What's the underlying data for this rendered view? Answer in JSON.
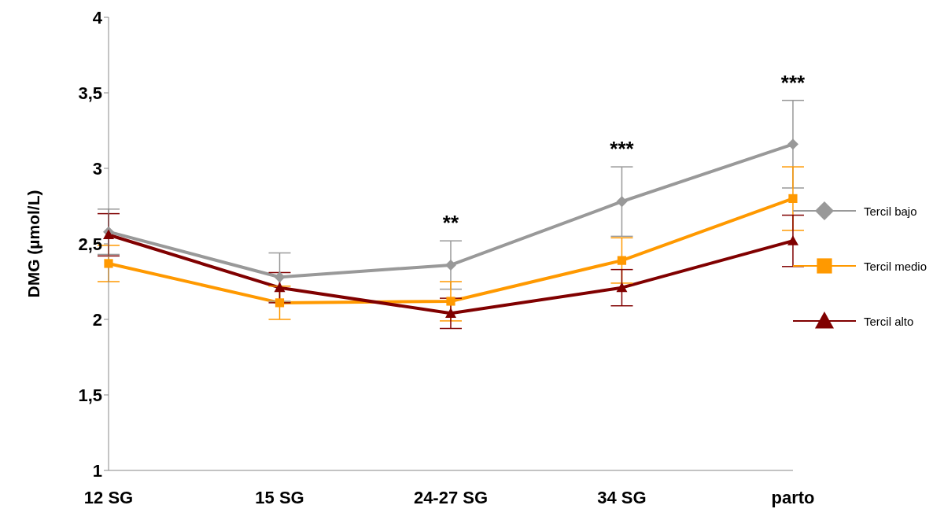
{
  "chart_data": {
    "type": "line",
    "ylabel": "DMG (µmol/L)",
    "categories": [
      "12 SG",
      "15 SG",
      "24-27 SG",
      "34 SG",
      "parto"
    ],
    "ylim": [
      1,
      4
    ],
    "yticks": [
      1,
      {
        "value": 1.5,
        "label": "1,5"
      },
      2,
      {
        "value": 2.5,
        "label": "2,5"
      },
      3,
      {
        "value": 3.5,
        "label": "3,5"
      },
      4
    ],
    "grid": false,
    "legend": "right",
    "series": [
      {
        "name": "Tercil bajo",
        "color": "#999999",
        "marker": "diamond",
        "values": [
          2.58,
          2.28,
          2.36,
          2.78,
          3.16
        ],
        "errors": [
          0.15,
          0.16,
          0.16,
          0.23,
          0.29
        ]
      },
      {
        "name": "Tercil medio",
        "color": "#ff9900",
        "marker": "square",
        "values": [
          2.37,
          2.11,
          2.12,
          2.39,
          2.8
        ],
        "errors": [
          0.12,
          0.11,
          0.13,
          0.15,
          0.21
        ]
      },
      {
        "name": "Tercil alto",
        "color": "#800000",
        "marker": "triangle",
        "values": [
          2.56,
          2.21,
          2.04,
          2.21,
          2.52
        ],
        "errors": [
          0.14,
          0.1,
          0.1,
          0.12,
          0.17
        ]
      }
    ],
    "annotations": [
      "**",
      "***",
      "***"
    ]
  }
}
